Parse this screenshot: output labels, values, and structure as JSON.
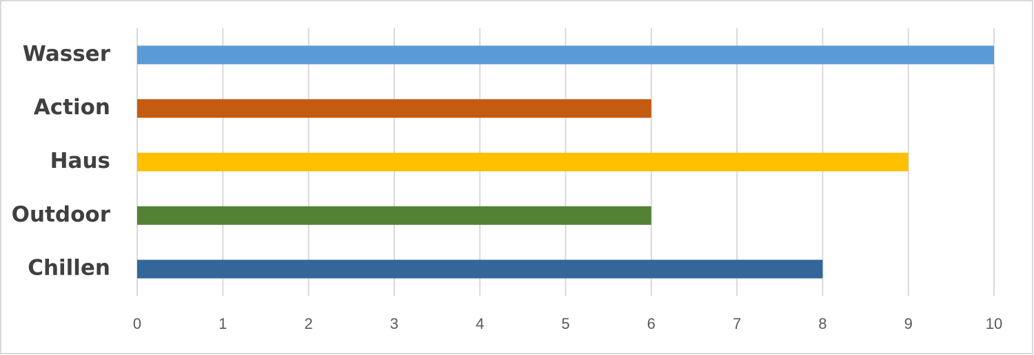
{
  "chart_data": {
    "type": "bar",
    "orientation": "horizontal",
    "categories": [
      "Wasser",
      "Action",
      "Haus",
      "Outdoor",
      "Chillen"
    ],
    "values": [
      10,
      6,
      9,
      6,
      8
    ],
    "colors": [
      "#5b9bd5",
      "#c55a11",
      "#ffc000",
      "#548235",
      "#336699"
    ],
    "xlim": [
      0,
      10
    ],
    "xticks": [
      0,
      1,
      2,
      3,
      4,
      5,
      6,
      7,
      8,
      9,
      10
    ],
    "grid": true
  }
}
